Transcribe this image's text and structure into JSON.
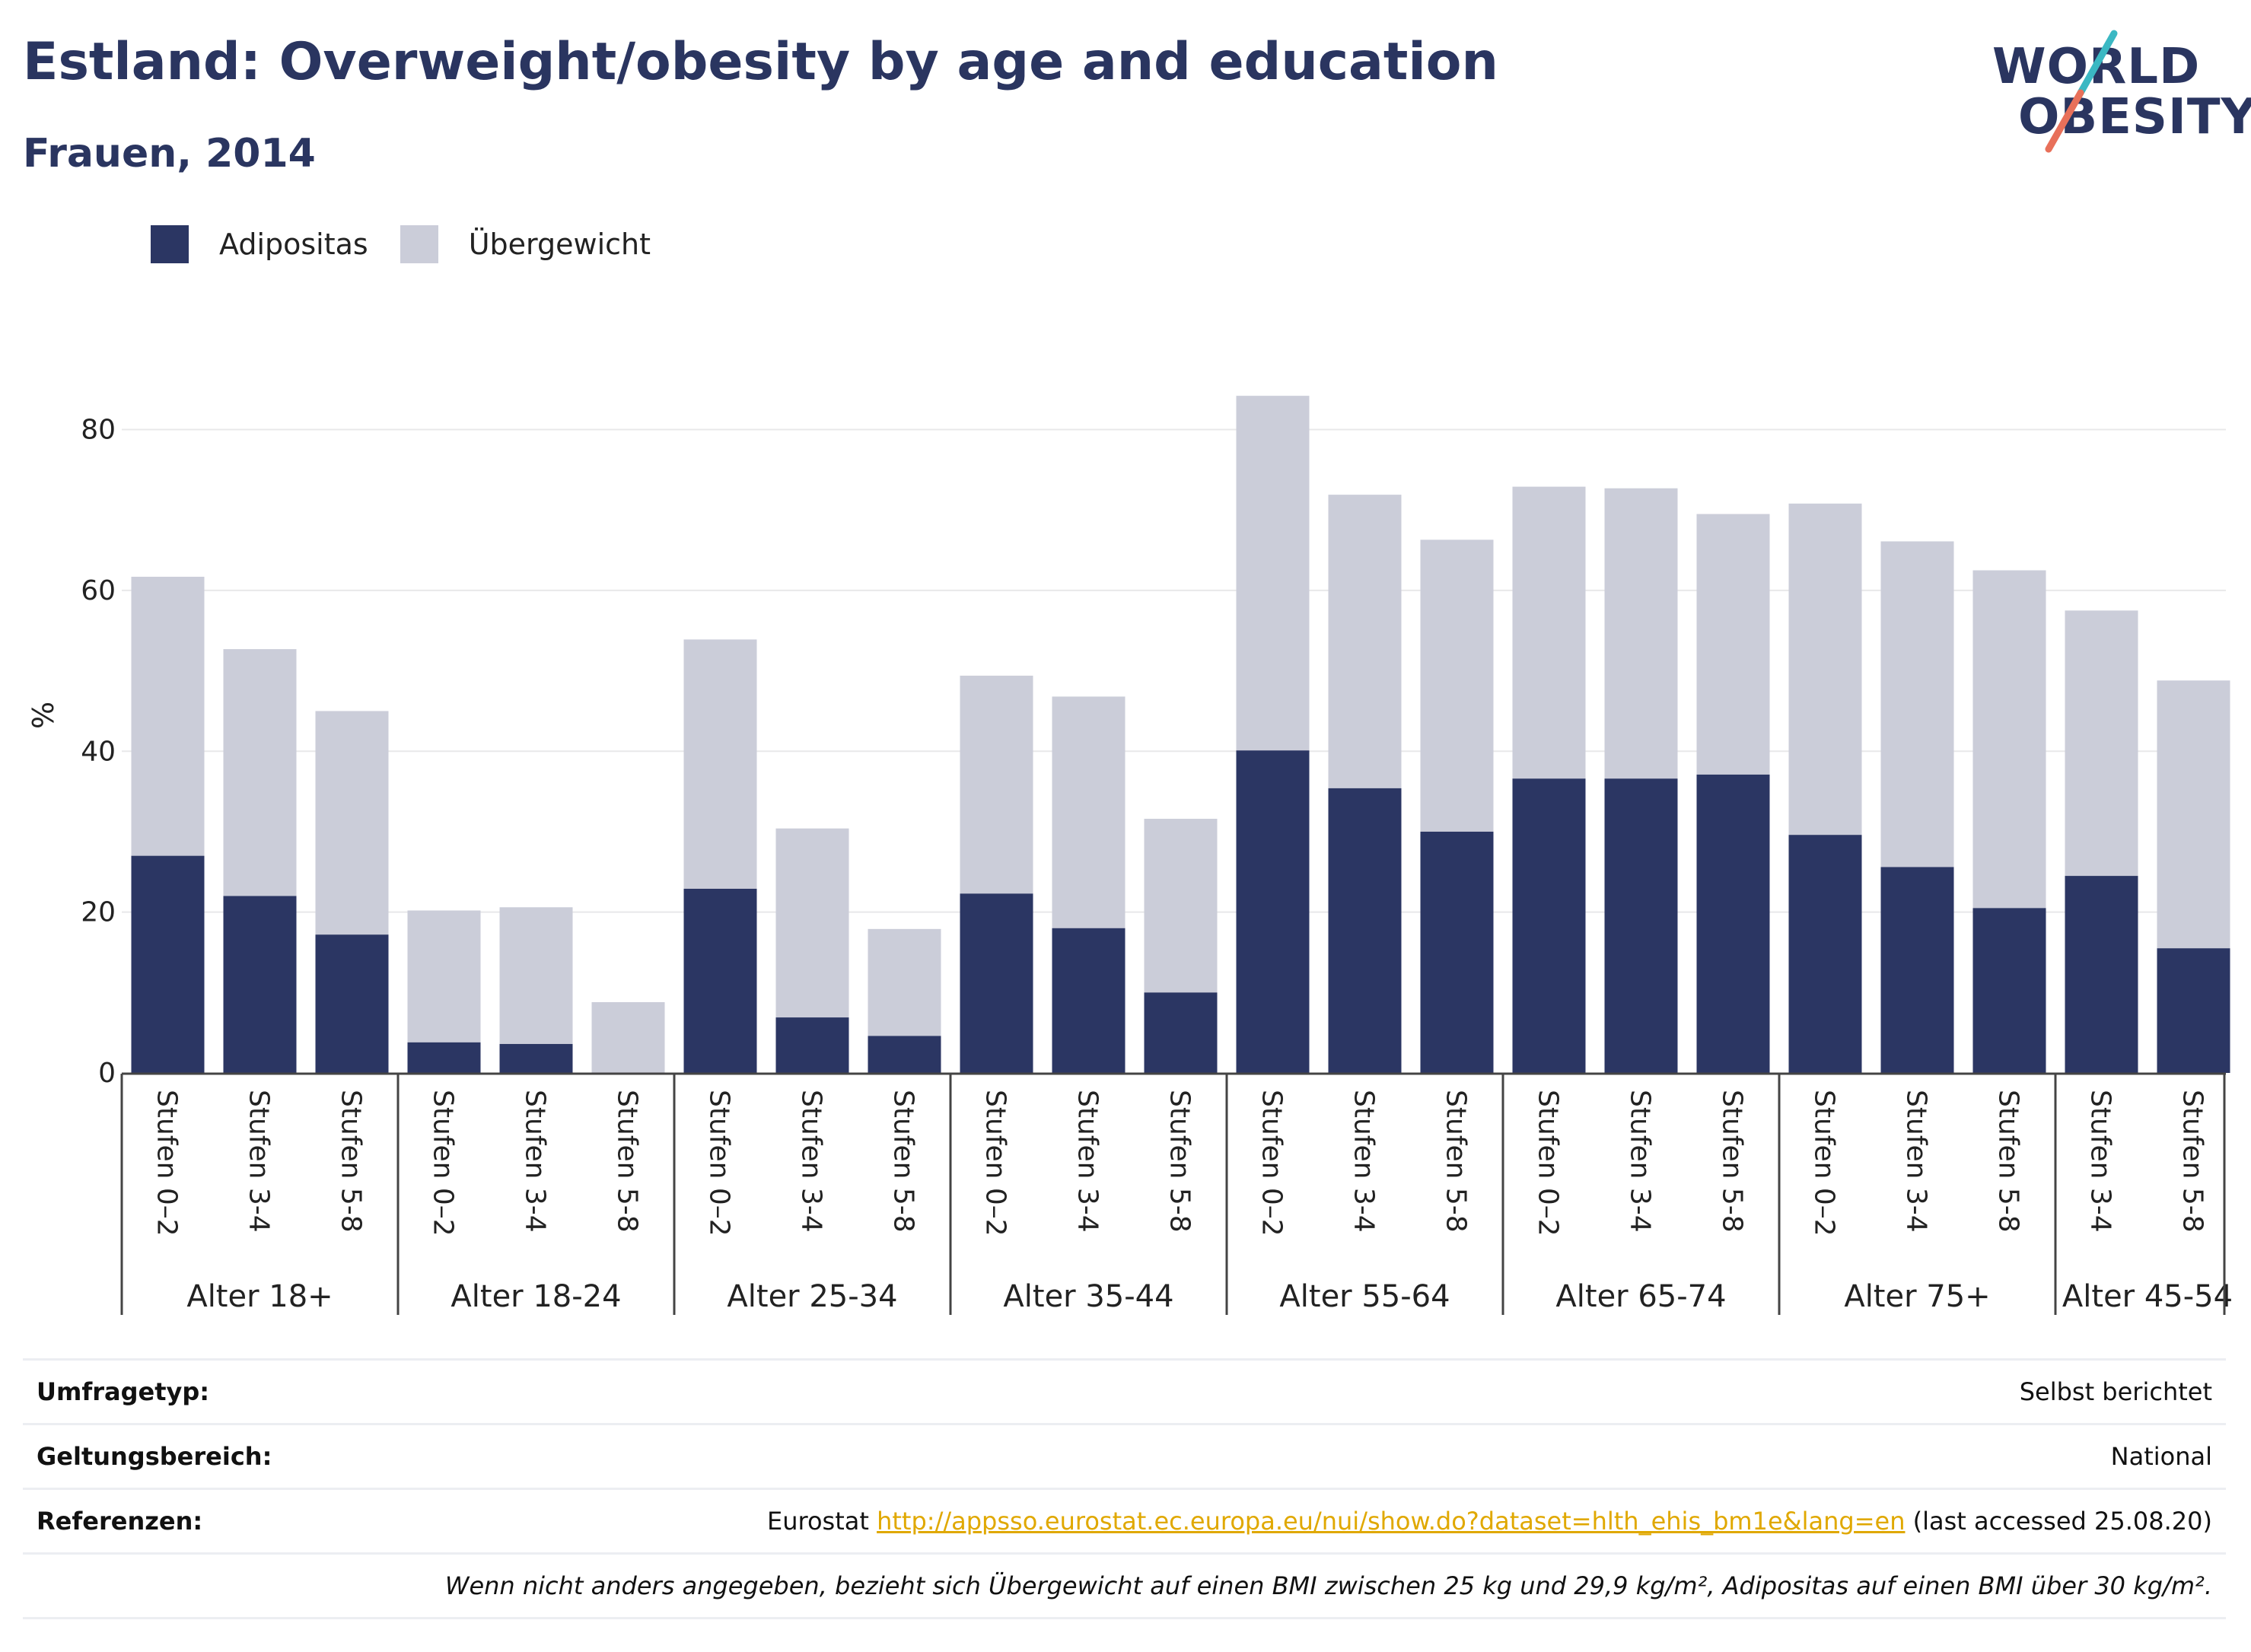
{
  "title": "Estland: Overweight/obesity by age and education",
  "subtitle": "Frauen, 2014",
  "logo": {
    "line1": "WORLD",
    "line2": "OBESITY"
  },
  "colors": {
    "obesity": "#2b3663",
    "overweight": "#cbcdd9",
    "title": "#2a3560",
    "link": "#e0a800",
    "logo_teal": "#3bb8c3",
    "logo_coral": "#e8705a"
  },
  "legend": [
    {
      "label": "Adipositas",
      "color": "#2b3663"
    },
    {
      "label": "Übergewicht",
      "color": "#cbcdd9"
    }
  ],
  "chart_data": {
    "type": "bar",
    "stacked": true,
    "ylabel": "%",
    "ylim": [
      0,
      88
    ],
    "yticks": [
      0,
      20,
      40,
      60,
      80
    ],
    "grid": true,
    "legend_position": "top-left",
    "groups": [
      {
        "label": "Alter 18+",
        "bars": [
          {
            "label": "Stufen 0–2",
            "obesity": 27,
            "total": 61.7
          },
          {
            "label": "Stufen 3-4",
            "obesity": 22,
            "total": 52.7
          },
          {
            "label": "Stufen 5-8",
            "obesity": 17.2,
            "total": 45
          }
        ]
      },
      {
        "label": "Alter 18-24",
        "bars": [
          {
            "label": "Stufen 0–2",
            "obesity": 3.8,
            "total": 20.2
          },
          {
            "label": "Stufen 3-4",
            "obesity": 3.6,
            "total": 20.6
          },
          {
            "label": "Stufen 5-8",
            "obesity": 0,
            "total": 8.8
          }
        ]
      },
      {
        "label": "Alter 25-34",
        "bars": [
          {
            "label": "Stufen 0–2",
            "obesity": 22.9,
            "total": 53.9
          },
          {
            "label": "Stufen 3-4",
            "obesity": 6.9,
            "total": 30.4
          },
          {
            "label": "Stufen 5-8",
            "obesity": 4.6,
            "total": 17.9
          }
        ]
      },
      {
        "label": "Alter 35-44",
        "bars": [
          {
            "label": "Stufen 0–2",
            "obesity": 22.3,
            "total": 49.4
          },
          {
            "label": "Stufen 3-4",
            "obesity": 18,
            "total": 46.8
          },
          {
            "label": "Stufen 5-8",
            "obesity": 10,
            "total": 31.6
          }
        ]
      },
      {
        "label": "Alter 55-64",
        "bars": [
          {
            "label": "Stufen 0–2",
            "obesity": 40.1,
            "total": 84.2
          },
          {
            "label": "Stufen 3-4",
            "obesity": 35.4,
            "total": 71.9
          },
          {
            "label": "Stufen 5-8",
            "obesity": 30,
            "total": 66.3
          }
        ]
      },
      {
        "label": "Alter 65-74",
        "bars": [
          {
            "label": "Stufen 0–2",
            "obesity": 36.6,
            "total": 72.9
          },
          {
            "label": "Stufen 3-4",
            "obesity": 36.6,
            "total": 72.7
          },
          {
            "label": "Stufen 5-8",
            "obesity": 37.1,
            "total": 69.5
          }
        ]
      },
      {
        "label": "Alter 75+",
        "bars": [
          {
            "label": "Stufen 0–2",
            "obesity": 29.6,
            "total": 70.8
          },
          {
            "label": "Stufen 3-4",
            "obesity": 25.6,
            "total": 66.1
          },
          {
            "label": "Stufen 5-8",
            "obesity": 20.5,
            "total": 62.5
          }
        ]
      },
      {
        "label": "Alter 45-54",
        "bars": [
          {
            "label": "Stufen 3-4",
            "obesity": 24.5,
            "total": 57.5
          },
          {
            "label": "Stufen 5-8",
            "obesity": 15.5,
            "total": 48.8
          }
        ]
      }
    ]
  },
  "info": {
    "survey_label": "Umfragetyp:",
    "survey_value": "Selbst berichtet",
    "scope_label": "Geltungsbereich:",
    "scope_value": "National",
    "ref_label": "Referenzen:",
    "ref_prefix": "Eurostat",
    "ref_url": "http://appsso.eurostat.ec.europa.eu/nui/show.do?dataset=hlth_ehis_bm1e&lang=en",
    "ref_suffix": "(last accessed 25.08.20)",
    "note": "Wenn nicht anders angegeben, bezieht sich Übergewicht auf einen BMI zwischen 25 kg und 29,9 kg/m², Adipositas auf einen BMI über 30 kg/m²."
  }
}
